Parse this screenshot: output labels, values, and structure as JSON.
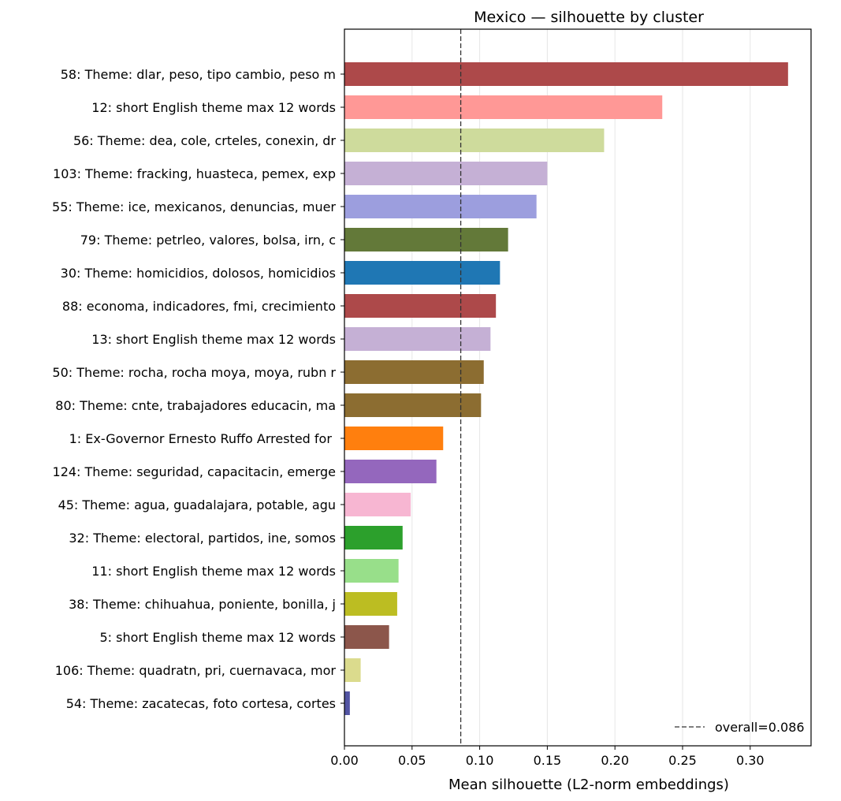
{
  "chart_data": {
    "type": "bar",
    "orientation": "horizontal",
    "title": "Mexico — silhouette by cluster",
    "xlabel": "Mean silhouette (L2-norm embeddings)",
    "ylabel": "",
    "xlim": [
      0,
      0.345
    ],
    "xticks": [
      "0.00",
      "0.05",
      "0.10",
      "0.15",
      "0.20",
      "0.25",
      "0.30"
    ],
    "grid": "vertical, light",
    "legend_position": "bottom-right",
    "reference_line": {
      "value": 0.086,
      "label": "overall=0.086",
      "style": "dashed"
    },
    "categories": [
      "58: Theme: dlar, peso, tipo cambio, peso m",
      "12: short English theme max 12 words",
      "56: Theme: dea, cole, crteles, conexin, dr",
      "103: Theme: fracking, huasteca, pemex, exp",
      "55: Theme: ice, mexicanos, denuncias, muer",
      "79: Theme: petrleo, valores, bolsa, irn, c",
      "30: Theme: homicidios, dolosos, homicidios",
      "88: economa, indicadores, fmi, crecimiento",
      "13: short English theme max 12 words",
      "50: Theme: rocha, rocha moya, moya, rubn r",
      "80: Theme: cnte, trabajadores educacin, ma",
      "1: Ex-Governor Ernesto Ruffo Arrested for ",
      "124: Theme: seguridad, capacitacin, emerge",
      "45: Theme: agua, guadalajara, potable, agu",
      "32: Theme: electoral, partidos, ine, somos",
      "11: short English theme max 12 words",
      "38: Theme: chihuahua, poniente, bonilla, j",
      "5: short English theme max 12 words",
      "106: Theme: quadratn, pri, cuernavaca, mor",
      "54: Theme: zacatecas, foto cortesa, cortes"
    ],
    "values": [
      0.328,
      0.235,
      0.192,
      0.15,
      0.142,
      0.121,
      0.115,
      0.112,
      0.108,
      0.103,
      0.101,
      0.073,
      0.068,
      0.049,
      0.043,
      0.04,
      0.039,
      0.033,
      0.012,
      0.004
    ],
    "colors": [
      "#ad494a",
      "#ff9896",
      "#cedb9c",
      "#c5b0d5",
      "#9c9ede",
      "#637939",
      "#1f77b4",
      "#ad494a",
      "#c5b0d5",
      "#8c6d31",
      "#8c6d31",
      "#ff7f0e",
      "#9467bd",
      "#f7b6d2",
      "#2ca02c",
      "#98df8a",
      "#bcbd22",
      "#8c564b",
      "#dbdb8d",
      "#5254a3"
    ]
  }
}
